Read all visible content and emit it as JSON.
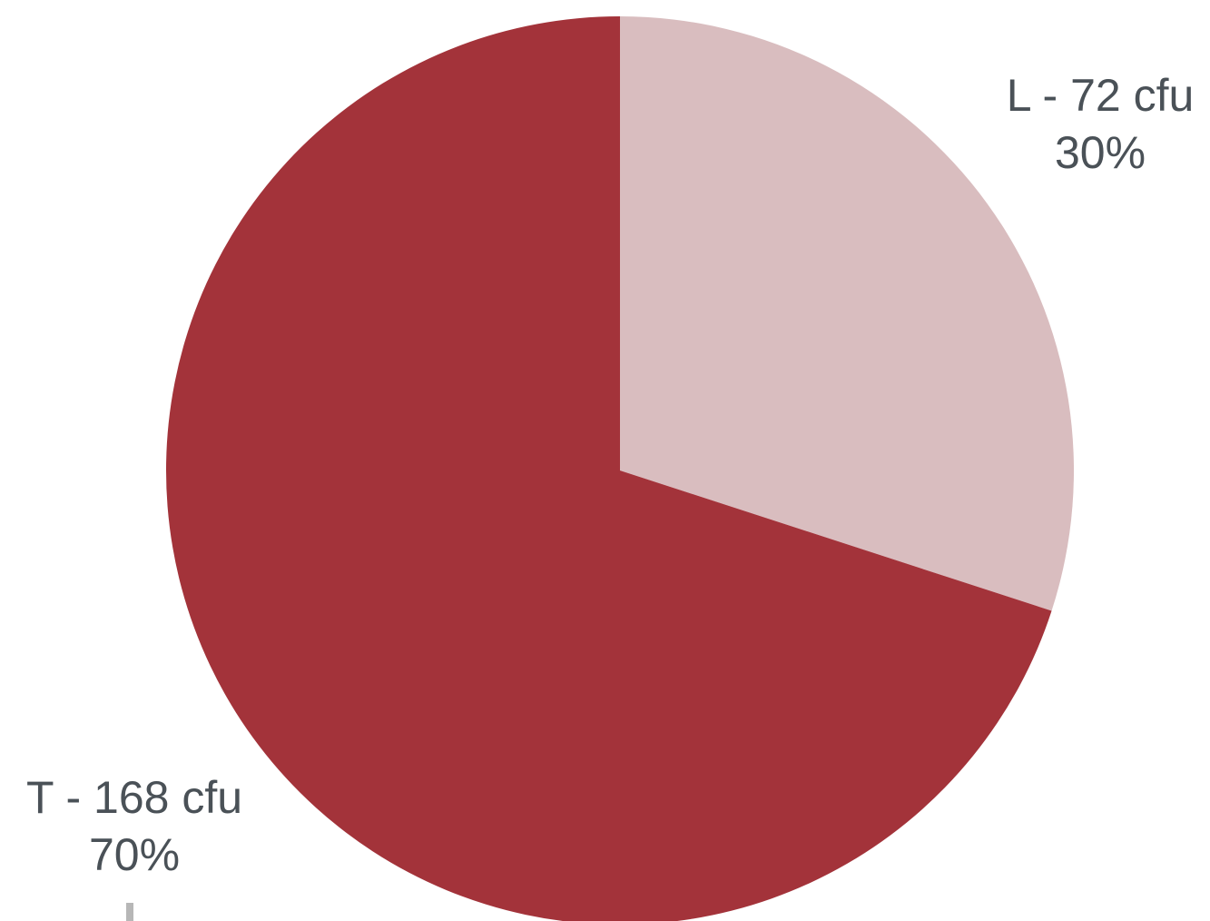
{
  "chart_data": {
    "type": "pie",
    "title": "",
    "slices": [
      {
        "name": "L",
        "label": "L - 72 cfu",
        "value": 72,
        "percent_label": "30%",
        "color": "#d9bdbf"
      },
      {
        "name": "T",
        "label": "T - 168 cfu",
        "value": 168,
        "percent_label": "70%",
        "color": "#a3333a"
      }
    ],
    "start_angle_deg": 0,
    "direction": "clockwise",
    "label_color": "#4a5157",
    "leader_line_color": "#b7b7b7"
  }
}
